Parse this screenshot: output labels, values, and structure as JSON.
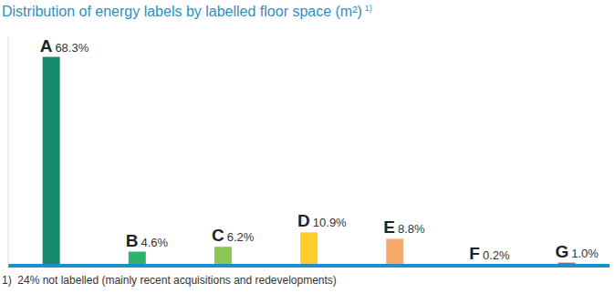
{
  "chart_data": {
    "type": "bar",
    "title": "Distribution of energy labels by labelled floor space (m²)",
    "title_note": "1)",
    "footnote": "1)  24% not labelled (mainly recent acquisitions and redevelopments)",
    "categories": [
      "A",
      "B",
      "C",
      "D",
      "E",
      "F",
      "G"
    ],
    "values": [
      68.3,
      4.6,
      6.2,
      10.9,
      8.8,
      0.2,
      1.0
    ],
    "value_labels": [
      "68.3%",
      "4.6%",
      "6.2%",
      "10.9%",
      "8.8%",
      "0.2%",
      "1.0%"
    ],
    "colors": [
      "#138a6e",
      "#2db36b",
      "#8cc657",
      "#ffcd2b",
      "#f7a96c",
      "#f07a62",
      "#d94c5b"
    ],
    "ylim": [
      0,
      75
    ],
    "data_labels": true,
    "tick_labels": false,
    "grid": false
  }
}
